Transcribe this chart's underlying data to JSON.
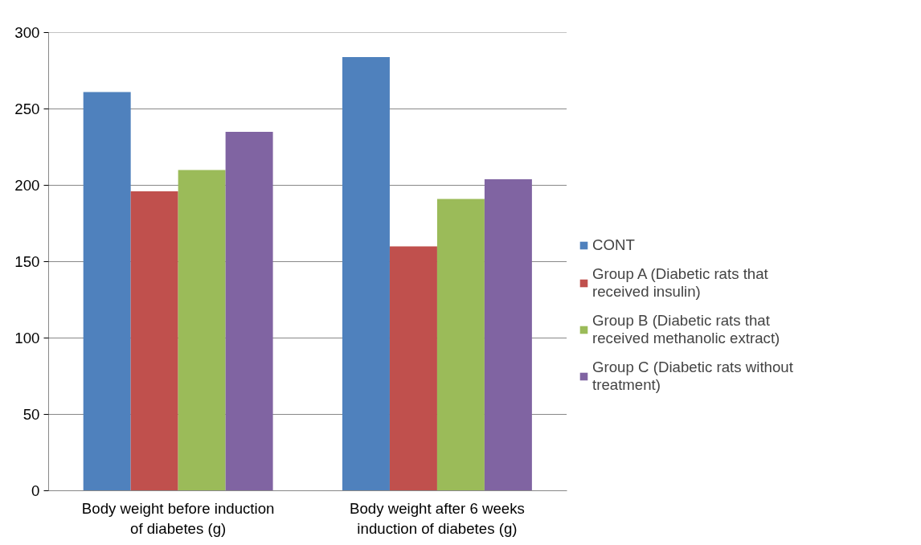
{
  "chart_data": {
    "type": "bar",
    "categories": [
      "Body weight before induction of diabetes (g)",
      "Body weight after 6 weeks induction of diabetes (g)"
    ],
    "series": [
      {
        "name": "CONT",
        "color": "#4f81bd",
        "values": [
          261,
          284
        ]
      },
      {
        "name": "Group A (Diabetic rats that received insulin)",
        "color": "#c0504d",
        "values": [
          196,
          160
        ]
      },
      {
        "name": "Group B (Diabetic rats that received methanolic extract)",
        "color": "#9bbb59",
        "values": [
          210,
          191
        ]
      },
      {
        "name": "Group C (Diabetic rats without treatment)",
        "color": "#8064a2",
        "values": [
          235,
          204
        ]
      }
    ],
    "ylim": [
      0,
      300
    ],
    "yticks": [
      0,
      50,
      100,
      150,
      200,
      250,
      300
    ],
    "grid": "y",
    "legend": "right"
  }
}
